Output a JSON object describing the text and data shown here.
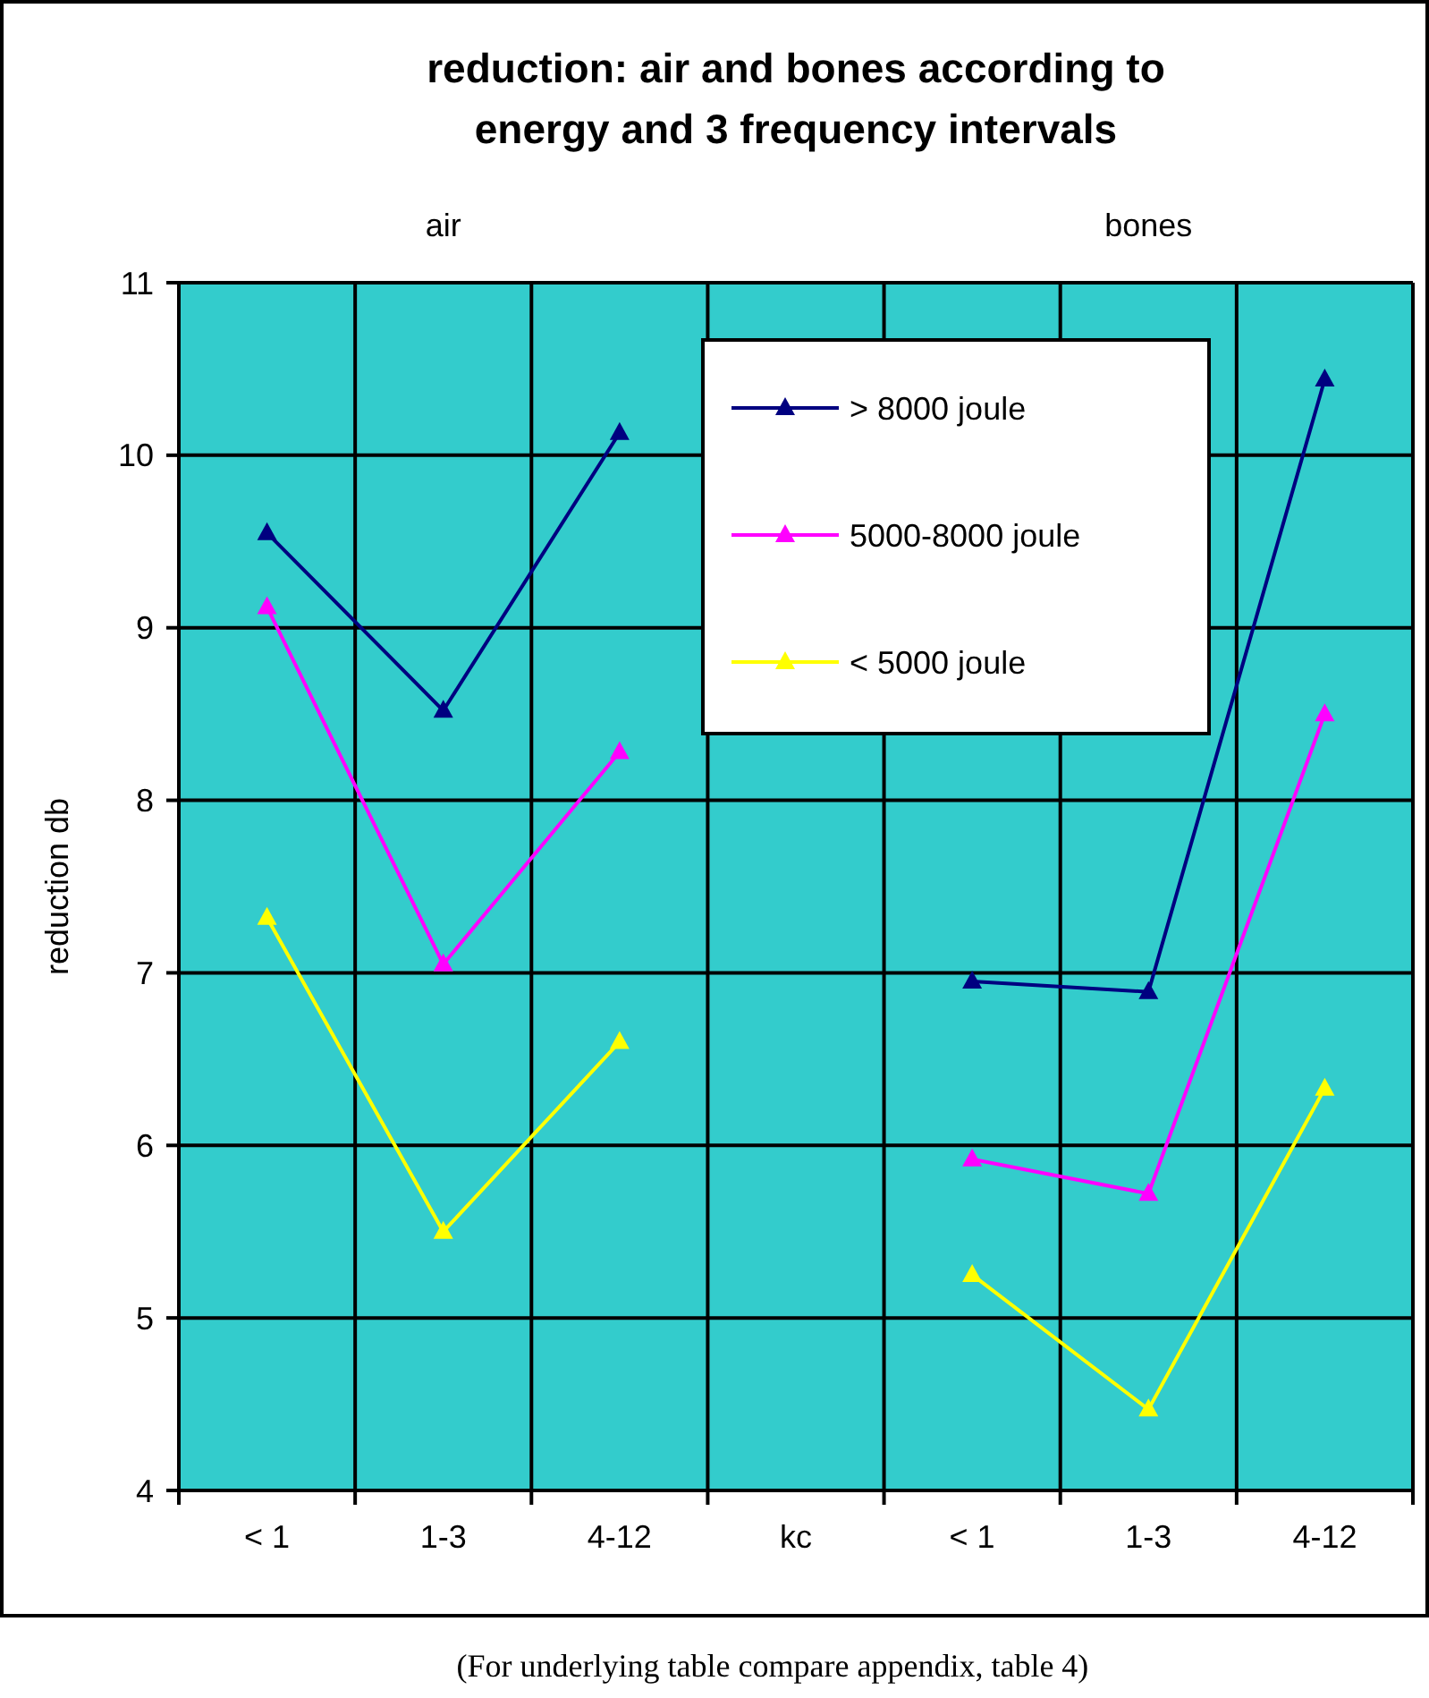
{
  "chart_data": {
    "type": "line",
    "title": "reduction: air and bones according to energy and 3 frequency intervals",
    "ylabel": "reduction db",
    "categories": [
      "< 1",
      "1-3",
      "4-12",
      "kc",
      "< 1",
      "1-3",
      "4-12"
    ],
    "series": [
      {
        "name": "> 8000 joule",
        "color": "#000080",
        "values": [
          9.55,
          8.52,
          10.13,
          null,
          6.95,
          6.89,
          10.44
        ]
      },
      {
        "name": "5000-8000 joule",
        "color": "#ff00ff",
        "values": [
          9.12,
          7.05,
          8.28,
          null,
          5.92,
          5.72,
          8.5
        ]
      },
      {
        "name": "< 5000 joule",
        "color": "#ffff00",
        "values": [
          7.32,
          5.5,
          6.6,
          null,
          5.25,
          4.47,
          6.33
        ]
      }
    ],
    "ylim": [
      4,
      11
    ],
    "yticks": [
      4,
      5,
      6,
      7,
      8,
      9,
      10,
      11
    ],
    "grid": true,
    "legend": "top right",
    "marker": "triangle",
    "line_style": "solid",
    "annotations": [
      "air",
      "bones",
      "(For underlying table compare appendix, table 4)"
    ]
  }
}
